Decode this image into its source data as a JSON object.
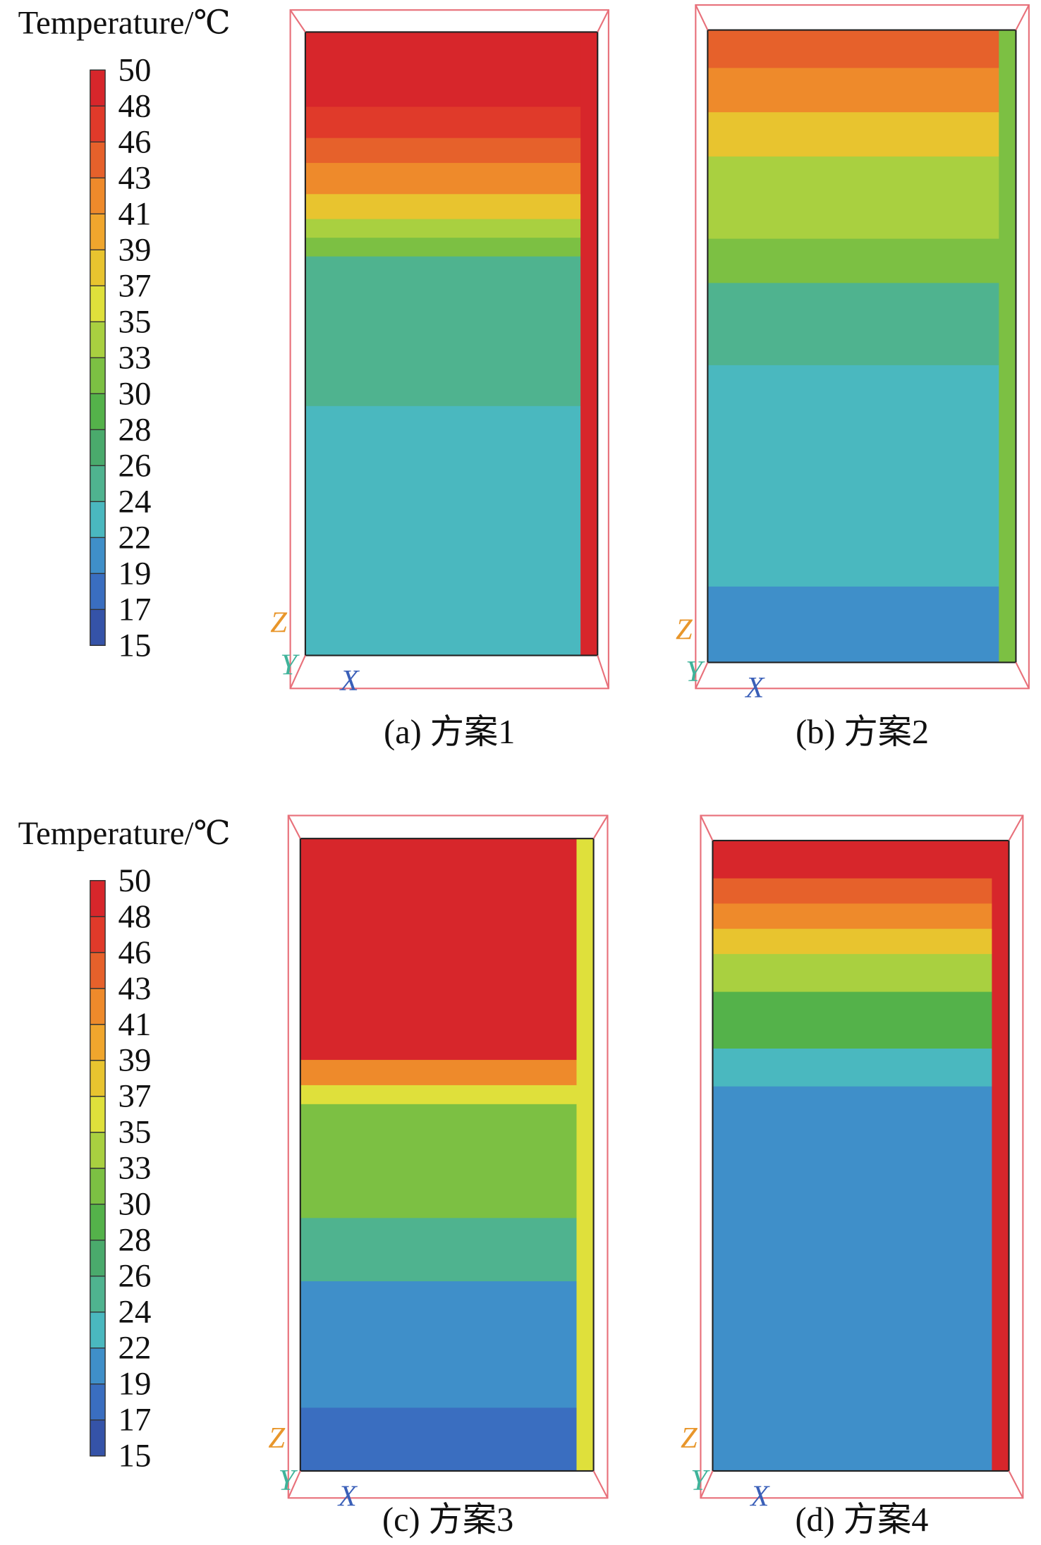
{
  "legends": [
    {
      "title": "Temperature/℃",
      "levels": [
        50,
        48,
        46,
        43,
        41,
        39,
        37,
        35,
        33,
        30,
        28,
        26,
        24,
        22,
        19,
        17,
        15
      ]
    },
    {
      "title": "Temperature/℃",
      "levels": [
        50,
        48,
        46,
        43,
        41,
        39,
        37,
        35,
        33,
        30,
        28,
        26,
        24,
        22,
        19,
        17,
        15
      ]
    }
  ],
  "panels": [
    {
      "caption": "(a) 方案1",
      "axes": [
        "Z",
        "Y",
        "X"
      ]
    },
    {
      "caption": "(b) 方案2",
      "axes": [
        "Z",
        "Y",
        "X"
      ]
    },
    {
      "caption": "(c) 方案3",
      "axes": [
        "Z",
        "Y",
        "X"
      ]
    },
    {
      "caption": "(d) 方案4",
      "axes": [
        "Z",
        "Y",
        "X"
      ]
    }
  ]
}
